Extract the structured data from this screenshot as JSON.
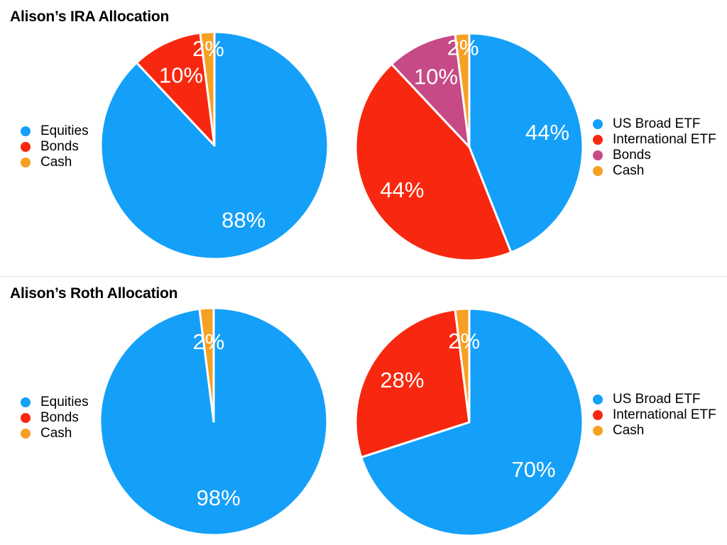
{
  "page": {
    "background": "#ffffff",
    "divider_color": "#e8e8e8"
  },
  "colors": {
    "blue": "#14A0F8",
    "red": "#F7280F",
    "magenta": "#C64A86",
    "orange": "#F6A024",
    "slice_label": "#ffffff",
    "title_text": "#000000"
  },
  "sections": [
    {
      "title": "Alison’s IRA Allocation"
    },
    {
      "title": "Alison’s Roth Allocation"
    }
  ],
  "chart_data": [
    {
      "type": "pie",
      "name": "ira-asset-classes",
      "group_title": "Alison’s IRA Allocation",
      "categories": [
        "Equities",
        "Bonds",
        "Cash"
      ],
      "values": [
        88,
        10,
        2
      ],
      "data_labels": [
        "88%",
        "10%",
        "2%"
      ],
      "colors": [
        "#14A0F8",
        "#F7280F",
        "#F6A024"
      ],
      "legend_position": "left",
      "start_angle_deg": 0,
      "direction": "clockwise",
      "label_radius": [
        0.7,
        0.69,
        0.86
      ]
    },
    {
      "type": "pie",
      "name": "ira-funds",
      "group_title": "Alison’s IRA Allocation",
      "categories": [
        "US Broad ETF",
        "International ETF",
        "Bonds",
        "Cash"
      ],
      "values": [
        44,
        44,
        10,
        2
      ],
      "data_labels": [
        "44%",
        "44%",
        "10%",
        "2%"
      ],
      "colors": [
        "#14A0F8",
        "#F7280F",
        "#C64A86",
        "#F6A024"
      ],
      "legend_position": "right",
      "start_angle_deg": 0,
      "direction": "clockwise",
      "label_radius": [
        0.7,
        0.7,
        0.69,
        0.88
      ]
    },
    {
      "type": "pie",
      "name": "roth-asset-classes",
      "group_title": "Alison’s Roth Allocation",
      "categories": [
        "Equities",
        "Bonds",
        "Cash"
      ],
      "values": [
        98,
        0,
        2
      ],
      "data_labels": [
        "98%",
        "",
        "2%"
      ],
      "colors": [
        "#14A0F8",
        "#F7280F",
        "#F6A024"
      ],
      "legend_position": "left",
      "start_angle_deg": 0,
      "direction": "clockwise",
      "label_radius": [
        0.67,
        0,
        0.71
      ]
    },
    {
      "type": "pie",
      "name": "roth-funds",
      "group_title": "Alison’s Roth Allocation",
      "categories": [
        "US Broad ETF",
        "International ETF",
        "Cash"
      ],
      "values": [
        70,
        28,
        2
      ],
      "data_labels": [
        "70%",
        "28%",
        "2%"
      ],
      "colors": [
        "#14A0F8",
        "#F7280F",
        "#F6A024"
      ],
      "legend_position": "right",
      "start_angle_deg": 0,
      "direction": "clockwise",
      "label_radius": [
        0.7,
        0.7,
        0.72
      ]
    }
  ]
}
